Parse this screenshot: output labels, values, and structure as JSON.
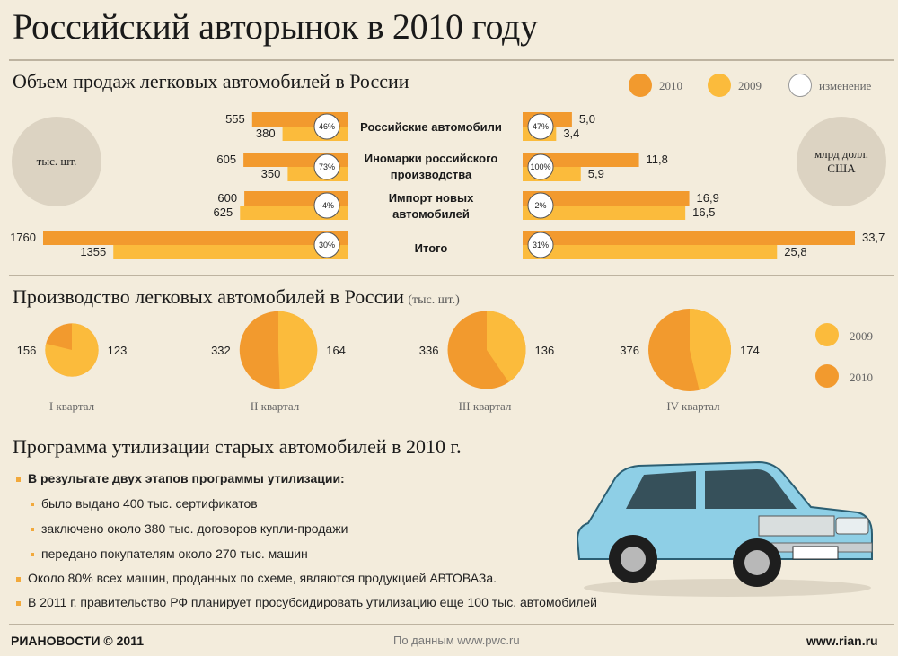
{
  "title": "Российский авторынок в 2010 году",
  "sales": {
    "title": "Объем продаж легковых автомобилей в России",
    "legend": [
      "2010",
      "2009",
      "изменение"
    ],
    "unit_left": "тыс. шт.",
    "unit_right": "млрд долл. США"
  },
  "production": {
    "title": "Производство легковых автомобилей в России",
    "unit": "(тыс. шт.)",
    "legend": [
      "2009",
      "2010"
    ]
  },
  "colors": {
    "c2010": "#f29a2e",
    "c2009": "#fbbb3c",
    "bg": "#f3ecdc"
  },
  "chart_data": [
    {
      "type": "bar",
      "title": "Объем продаж легковых автомобилей в России",
      "ylabel": "тыс. шт.",
      "categories": [
        "Российские автомобили",
        "Иномарки российского производства",
        "Импорт новых автомобилей",
        "Итого"
      ],
      "series": [
        {
          "name": "2010",
          "values": [
            555,
            605,
            600,
            1760
          ]
        },
        {
          "name": "2009",
          "values": [
            380,
            350,
            625,
            1355
          ]
        }
      ],
      "change": [
        "46%",
        "73%",
        "-4%",
        "30%"
      ]
    },
    {
      "type": "bar",
      "ylabel": "млрд долл. США",
      "categories": [
        "Российские автомобили",
        "Иномарки российского производства",
        "Импорт новых автомобилей",
        "Итого"
      ],
      "series": [
        {
          "name": "2010",
          "values": [
            5.0,
            11.8,
            16.9,
            33.7
          ]
        },
        {
          "name": "2009",
          "values": [
            3.4,
            5.9,
            16.5,
            25.8
          ]
        }
      ],
      "change": [
        "47%",
        "100%",
        "2%",
        "31%"
      ]
    },
    {
      "type": "pie",
      "title": "Производство легковых автомобилей в России",
      "categories": [
        "I квартал",
        "II квартал",
        "III квартал",
        "IV квартал"
      ],
      "series": [
        {
          "name": "2010",
          "values": [
            156,
            332,
            336,
            376
          ]
        },
        {
          "name": "2009",
          "values": [
            123,
            164,
            136,
            174
          ]
        }
      ]
    }
  ],
  "utilization": {
    "title": "Программа утилизации старых автомобилей в 2010 г.",
    "heading": "В результате двух этапов программы утилизации:",
    "sub": [
      "было выдано 400 тыс. сертификатов",
      "заключено около 380 тыс. договоров купли-продажи",
      "передано покупателям около 270 тыс. машин"
    ],
    "items": [
      "Около 80% всех машин, проданных по схеме, являются продукцией АВТОВАЗа.",
      "В 2011 г. правительство РФ планирует просубсидировать утилизацию еще 100 тыс. автомобилей"
    ]
  },
  "footer": {
    "brand": "РИАНОВОСТИ © 2011",
    "source": "По данным www.pwc.ru",
    "url": "www.rian.ru"
  }
}
